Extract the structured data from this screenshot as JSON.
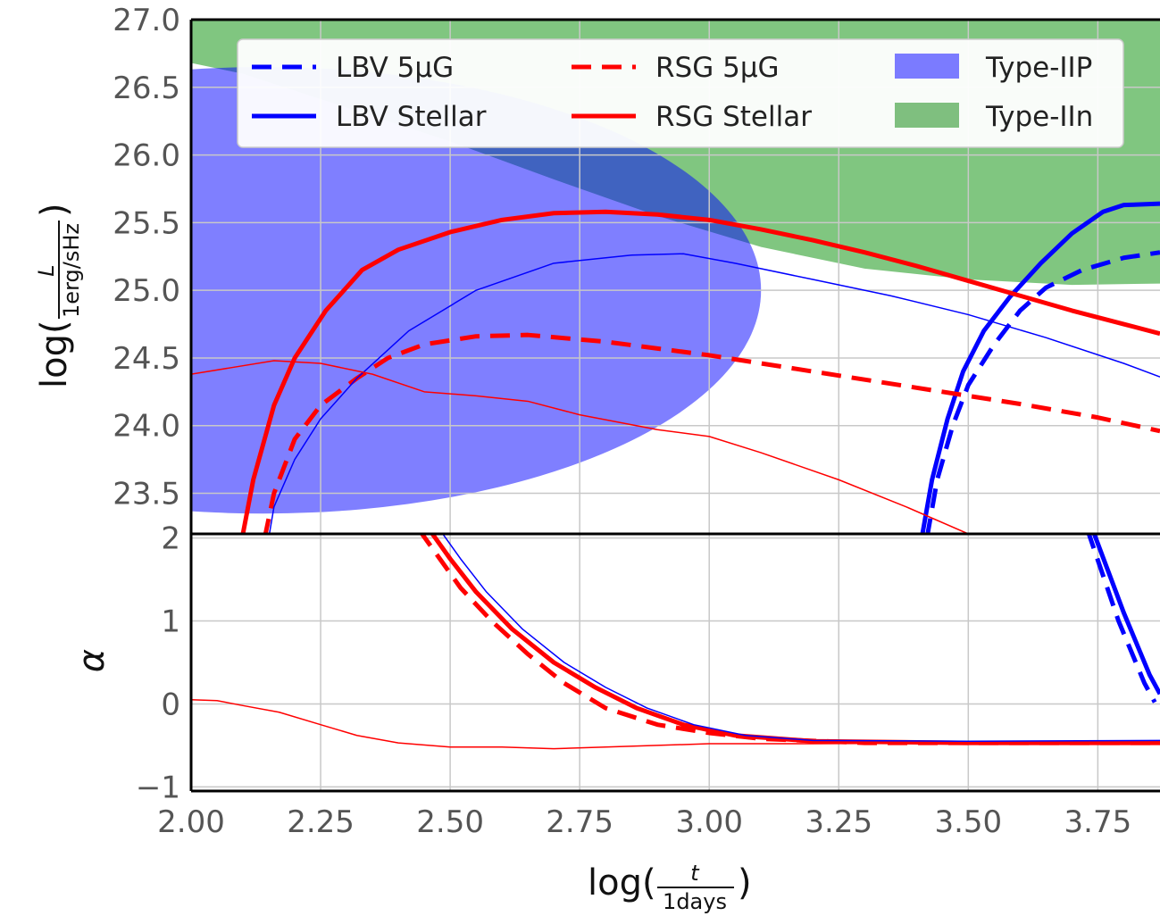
{
  "chart_data": [
    {
      "type": "line",
      "panel": "top",
      "ylabel_prefix": "log(",
      "ylabel_num": "L",
      "ylabel_den": "1erg/sHz",
      "ylabel_suffix": ")",
      "xlim": [
        2.0,
        3.87
      ],
      "ylim": [
        23.2,
        27.0
      ],
      "yticks": [
        23.5,
        24.0,
        24.5,
        25.0,
        25.5,
        26.0,
        26.5,
        27.0
      ],
      "ytick_labels": [
        "23.5",
        "24.0",
        "24.5",
        "25.0",
        "25.5",
        "26.0",
        "26.5",
        "27.0"
      ],
      "grid": true,
      "legend_position": "top",
      "series": [
        {
          "name": "LBV 5μG",
          "color": "#0000ff",
          "style": "dashed",
          "width": 5,
          "points": [
            [
              3.41,
              22.95
            ],
            [
              3.44,
              23.6
            ],
            [
              3.47,
              24.0
            ],
            [
              3.5,
              24.3
            ],
            [
              3.55,
              24.6
            ],
            [
              3.6,
              24.85
            ],
            [
              3.65,
              25.02
            ],
            [
              3.72,
              25.15
            ],
            [
              3.8,
              25.24
            ],
            [
              3.87,
              25.28
            ]
          ]
        },
        {
          "name": "LBV Stellar",
          "color": "#0000ff",
          "style": "solid",
          "width": 5,
          "points": [
            [
              3.4,
              22.95
            ],
            [
              3.43,
              23.6
            ],
            [
              3.46,
              24.05
            ],
            [
              3.49,
              24.4
            ],
            [
              3.53,
              24.7
            ],
            [
              3.58,
              24.95
            ],
            [
              3.64,
              25.2
            ],
            [
              3.7,
              25.42
            ],
            [
              3.76,
              25.58
            ],
            [
              3.8,
              25.63
            ],
            [
              3.87,
              25.64
            ]
          ]
        },
        {
          "name": "RSG 5μG",
          "color": "#ff0000",
          "style": "dashed",
          "width": 5,
          "points": [
            [
              2.13,
              22.95
            ],
            [
              2.16,
              23.5
            ],
            [
              2.2,
              23.9
            ],
            [
              2.25,
              24.15
            ],
            [
              2.32,
              24.35
            ],
            [
              2.38,
              24.5
            ],
            [
              2.45,
              24.6
            ],
            [
              2.55,
              24.66
            ],
            [
              2.65,
              24.67
            ],
            [
              2.8,
              24.62
            ],
            [
              3.0,
              24.52
            ],
            [
              3.2,
              24.4
            ],
            [
              3.4,
              24.28
            ],
            [
              3.6,
              24.16
            ],
            [
              3.75,
              24.06
            ],
            [
              3.87,
              23.96
            ]
          ]
        },
        {
          "name": "RSG Stellar",
          "color": "#ff0000",
          "style": "solid",
          "width": 5,
          "points": [
            [
              2.09,
              23.0
            ],
            [
              2.12,
              23.6
            ],
            [
              2.16,
              24.15
            ],
            [
              2.2,
              24.5
            ],
            [
              2.26,
              24.85
            ],
            [
              2.33,
              25.15
            ],
            [
              2.4,
              25.3
            ],
            [
              2.5,
              25.43
            ],
            [
              2.6,
              25.52
            ],
            [
              2.7,
              25.57
            ],
            [
              2.8,
              25.58
            ],
            [
              2.9,
              25.56
            ],
            [
              3.0,
              25.52
            ],
            [
              3.1,
              25.45
            ],
            [
              3.2,
              25.37
            ],
            [
              3.3,
              25.28
            ],
            [
              3.4,
              25.18
            ],
            [
              3.5,
              25.07
            ],
            [
              3.6,
              24.96
            ],
            [
              3.7,
              24.85
            ],
            [
              3.8,
              24.75
            ],
            [
              3.87,
              24.68
            ]
          ]
        },
        {
          "name": "",
          "color": "#0000ff",
          "style": "solid",
          "width": 1.5,
          "points": [
            [
              2.14,
              22.95
            ],
            [
              2.16,
              23.4
            ],
            [
              2.2,
              23.75
            ],
            [
              2.25,
              24.05
            ],
            [
              2.32,
              24.35
            ],
            [
              2.42,
              24.7
            ],
            [
              2.55,
              25.0
            ],
            [
              2.7,
              25.2
            ],
            [
              2.85,
              25.26
            ],
            [
              2.95,
              25.27
            ],
            [
              3.05,
              25.2
            ],
            [
              3.2,
              25.08
            ],
            [
              3.35,
              24.96
            ],
            [
              3.5,
              24.82
            ],
            [
              3.65,
              24.65
            ],
            [
              3.8,
              24.46
            ],
            [
              3.87,
              24.36
            ]
          ]
        },
        {
          "name": "",
          "color": "#ff0000",
          "style": "solid",
          "width": 1.5,
          "points": [
            [
              2.0,
              24.38
            ],
            [
              2.08,
              24.43
            ],
            [
              2.16,
              24.48
            ],
            [
              2.25,
              24.46
            ],
            [
              2.35,
              24.38
            ],
            [
              2.45,
              24.25
            ],
            [
              2.55,
              24.22
            ],
            [
              2.65,
              24.18
            ],
            [
              2.75,
              24.08
            ],
            [
              2.9,
              23.97
            ],
            [
              3.0,
              23.92
            ],
            [
              3.1,
              23.8
            ],
            [
              3.25,
              23.6
            ],
            [
              3.38,
              23.4
            ],
            [
              3.5,
              23.2
            ]
          ]
        }
      ],
      "bands": [
        {
          "name": "Type-IIn",
          "color": "#2ca02c",
          "opacity": 0.6
        },
        {
          "name": "Type-IIP",
          "color": "#0000ff",
          "opacity": 0.5
        }
      ]
    },
    {
      "type": "line",
      "panel": "bottom",
      "ylabel": "α",
      "xlabel_prefix": "log(",
      "xlabel_num": "t",
      "xlabel_den": "1days",
      "xlabel_suffix": ")",
      "xlim": [
        2.0,
        3.87
      ],
      "ylim": [
        -1.05,
        2.05
      ],
      "yticks": [
        -1,
        0,
        1,
        2
      ],
      "ytick_labels": [
        "−1",
        "0",
        "1",
        "2"
      ],
      "xticks": [
        2.0,
        2.25,
        2.5,
        2.75,
        3.0,
        3.25,
        3.5,
        3.75
      ],
      "xtick_labels": [
        "2.00",
        "2.25",
        "2.50",
        "2.75",
        "3.00",
        "3.25",
        "3.50",
        "3.75"
      ],
      "grid": true,
      "series": [
        {
          "name": "RSG 5μG",
          "color": "#ff0000",
          "style": "dashed",
          "width": 5,
          "points": [
            [
              2.44,
              2.1
            ],
            [
              2.48,
              1.75
            ],
            [
              2.52,
              1.4
            ],
            [
              2.58,
              1.0
            ],
            [
              2.65,
              0.6
            ],
            [
              2.72,
              0.25
            ],
            [
              2.8,
              -0.05
            ],
            [
              2.9,
              -0.25
            ],
            [
              3.0,
              -0.35
            ],
            [
              3.1,
              -0.42
            ],
            [
              3.3,
              -0.47
            ],
            [
              3.6,
              -0.47
            ],
            [
              3.87,
              -0.47
            ]
          ]
        },
        {
          "name": "RSG Stellar",
          "color": "#ff0000",
          "style": "solid",
          "width": 5,
          "points": [
            [
              2.46,
              2.1
            ],
            [
              2.5,
              1.75
            ],
            [
              2.55,
              1.35
            ],
            [
              2.62,
              0.9
            ],
            [
              2.7,
              0.5
            ],
            [
              2.78,
              0.2
            ],
            [
              2.86,
              -0.05
            ],
            [
              2.95,
              -0.25
            ],
            [
              3.05,
              -0.38
            ],
            [
              3.2,
              -0.45
            ],
            [
              3.5,
              -0.47
            ],
            [
              3.87,
              -0.47
            ]
          ]
        },
        {
          "name": "",
          "color": "#0000ff",
          "style": "solid",
          "width": 1.5,
          "points": [
            [
              2.48,
              2.1
            ],
            [
              2.52,
              1.75
            ],
            [
              2.57,
              1.35
            ],
            [
              2.64,
              0.9
            ],
            [
              2.72,
              0.5
            ],
            [
              2.8,
              0.2
            ],
            [
              2.88,
              -0.05
            ],
            [
              2.97,
              -0.25
            ],
            [
              3.07,
              -0.38
            ],
            [
              3.2,
              -0.44
            ],
            [
              3.5,
              -0.45
            ],
            [
              3.87,
              -0.44
            ]
          ]
        },
        {
          "name": "LBV Stellar",
          "color": "#0000ff",
          "style": "solid",
          "width": 5,
          "points": [
            [
              3.74,
              2.1
            ],
            [
              3.77,
              1.6
            ],
            [
              3.8,
              1.1
            ],
            [
              3.83,
              0.65
            ],
            [
              3.85,
              0.35
            ],
            [
              3.87,
              0.12
            ]
          ]
        },
        {
          "name": "LBV 5μG",
          "color": "#0000ff",
          "style": "dashed",
          "width": 5,
          "points": [
            [
              3.73,
              2.1
            ],
            [
              3.76,
              1.55
            ],
            [
              3.79,
              1.0
            ],
            [
              3.82,
              0.55
            ],
            [
              3.84,
              0.25
            ],
            [
              3.86,
              0.02
            ]
          ]
        },
        {
          "name": "",
          "color": "#ff0000",
          "style": "solid",
          "width": 1.5,
          "points": [
            [
              2.0,
              0.05
            ],
            [
              2.05,
              0.04
            ],
            [
              2.1,
              -0.02
            ],
            [
              2.17,
              -0.1
            ],
            [
              2.25,
              -0.25
            ],
            [
              2.32,
              -0.38
            ],
            [
              2.4,
              -0.47
            ],
            [
              2.5,
              -0.52
            ],
            [
              2.6,
              -0.52
            ],
            [
              2.7,
              -0.54
            ],
            [
              2.8,
              -0.52
            ],
            [
              2.9,
              -0.5
            ],
            [
              3.0,
              -0.48
            ],
            [
              3.2,
              -0.48
            ],
            [
              3.5,
              -0.47
            ],
            [
              3.87,
              -0.47
            ]
          ]
        }
      ]
    }
  ],
  "legend": [
    {
      "label": "LBV 5μG",
      "kind": "line",
      "color": "#0000ff",
      "style": "dashed"
    },
    {
      "label": "RSG 5μG",
      "kind": "line",
      "color": "#ff0000",
      "style": "dashed"
    },
    {
      "label": "Type-IIP",
      "kind": "patch",
      "color": "#7b7bff"
    },
    {
      "label": "LBV Stellar",
      "kind": "line",
      "color": "#0000ff",
      "style": "solid"
    },
    {
      "label": "RSG Stellar",
      "kind": "line",
      "color": "#ff0000",
      "style": "solid"
    },
    {
      "label": "Type-IIn",
      "kind": "patch",
      "color": "#7fbf7f"
    }
  ]
}
